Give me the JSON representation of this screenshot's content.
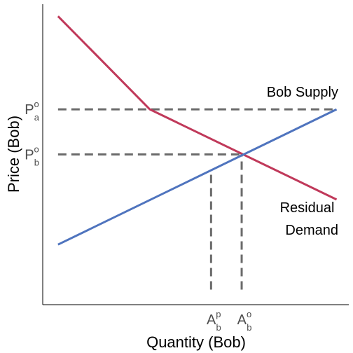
{
  "chart_data": {
    "type": "line",
    "title": "",
    "xlabel": "Quantity (Bob)",
    "ylabel": "Price (Bob)",
    "xlim": [
      0,
      100
    ],
    "ylim": [
      0,
      100
    ],
    "grid": false,
    "series": [
      {
        "name": "Residual Demand",
        "label_lines": [
          "Residual",
          "Demand"
        ],
        "color": "#c0395a",
        "x": [
          5,
          35,
          96
        ],
        "y": [
          96,
          65,
          35
        ]
      },
      {
        "name": "Bob Supply",
        "color": "#4f74be",
        "x": [
          5,
          96
        ],
        "y": [
          20,
          65
        ]
      }
    ],
    "reference_lines": [
      {
        "kind": "horizontal",
        "y": 65,
        "x_from": 5,
        "x_to": 96,
        "color": "#6b6b6b"
      },
      {
        "kind": "horizontal",
        "y": 50,
        "x_from": 5,
        "x_to": 65,
        "color": "#6b6b6b"
      },
      {
        "kind": "vertical",
        "x": 55,
        "y_from": 5,
        "y_to": 45,
        "color": "#6b6b6b"
      },
      {
        "kind": "vertical",
        "x": 65,
        "y_from": 5,
        "y_to": 50,
        "color": "#6b6b6b"
      }
    ],
    "y_ticks": [
      {
        "value": 65,
        "base": "P",
        "sup": "o",
        "sub": "a"
      },
      {
        "value": 50,
        "base": "P",
        "sup": "o",
        "sub": "b"
      }
    ],
    "x_ticks": [
      {
        "value": 55,
        "base": "A",
        "sup": "p",
        "sub": "b"
      },
      {
        "value": 65,
        "base": "A",
        "sup": "o",
        "sub": "b"
      }
    ]
  }
}
